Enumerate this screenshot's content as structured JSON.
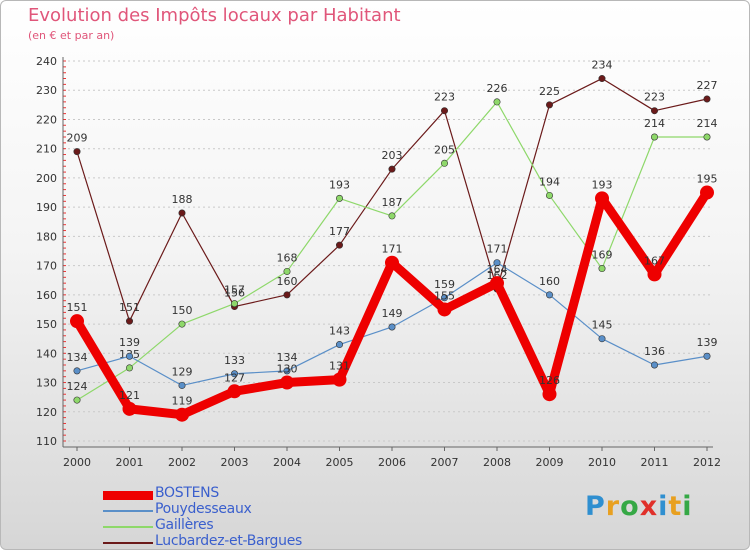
{
  "title": "Evolution des Impôts locaux par Habitant",
  "subtitle": "(en € et par an)",
  "logo": "Proxiti",
  "chart_data": {
    "type": "line",
    "title": "Evolution des Impôts locaux par Habitant",
    "subtitle": "(en € et par an)",
    "xlabel": "",
    "ylabel": "",
    "ylim": [
      110,
      240
    ],
    "yticks": [
      110,
      120,
      130,
      140,
      150,
      160,
      170,
      180,
      190,
      200,
      210,
      220,
      230,
      240
    ],
    "categories": [
      "2000",
      "2001",
      "2002",
      "2003",
      "2004",
      "2005",
      "2006",
      "2007",
      "2008",
      "2009",
      "2010",
      "2011",
      "2012"
    ],
    "grid": "horizontal",
    "legend_position": "bottom-left",
    "series": [
      {
        "name": "Lucbardez-et-Bargues",
        "color": "#6b1a1a",
        "values": [
          209,
          151,
          188,
          156,
          160,
          177,
          203,
          223,
          162,
          225,
          234,
          223,
          227
        ]
      },
      {
        "name": "Gaillères",
        "color": "#8ed86a",
        "values": [
          124,
          135,
          150,
          157,
          168,
          193,
          187,
          205,
          226,
          194,
          169,
          214,
          214
        ]
      },
      {
        "name": "Pouydesseaux",
        "color": "#5a8fc8",
        "values": [
          134,
          139,
          129,
          133,
          134,
          143,
          149,
          159,
          171,
          160,
          145,
          136,
          139
        ]
      },
      {
        "name": "BOSTENS",
        "color": "#ee0000",
        "values": [
          151,
          121,
          119,
          127,
          130,
          131,
          171,
          155,
          164,
          126,
          193,
          167,
          195
        ]
      }
    ],
    "legend_order": [
      "BOSTENS",
      "Pouydesseaux",
      "Gaillères",
      "Lucbardez-et-Bargues"
    ]
  }
}
